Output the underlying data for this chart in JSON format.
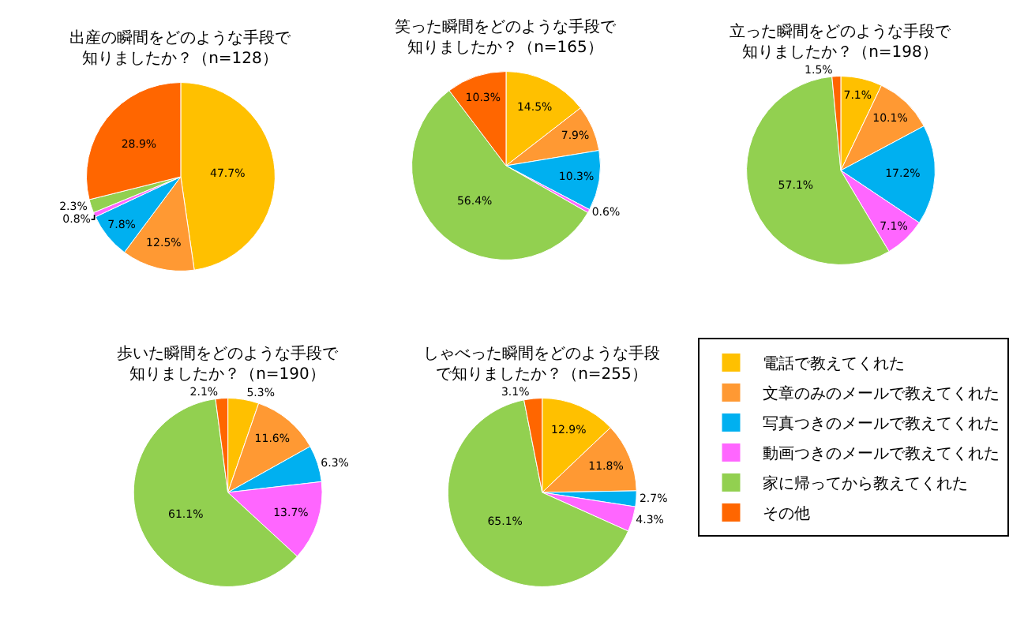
{
  "chart_data": [
    {
      "type": "pie",
      "title": "出産の瞬間をどのような手段で知りましたか？（n=128）",
      "categories": [
        "電話で教えてくれた",
        "文章のみのメールで教えてくれた",
        "写真つきのメールで教えてくれた",
        "動画つきのメールで教えてくれた",
        "家に帰ってから教えてくれた",
        "その他"
      ],
      "values": [
        47.7,
        12.5,
        7.8,
        0.8,
        2.3,
        28.9
      ],
      "colors": [
        "#ffc000",
        "#ff9933",
        "#00b0f0",
        "#ff66ff",
        "#92d050",
        "#ff6600"
      ],
      "value_labels": [
        "47.7%",
        "12.5%",
        "7.8%",
        "0.8%",
        "2.3%",
        "28.9%"
      ],
      "legend": "right"
    },
    {
      "type": "pie",
      "title": "笑った瞬間をどのような手段で知りましたか？（n=165）",
      "categories": [
        null,
        null,
        null,
        null,
        null,
        null
      ],
      "values": [
        14.5,
        7.9,
        10.3,
        0.6,
        56.4,
        10.3
      ],
      "colors": [
        "#ffc000",
        "#ff9933",
        "#00b0f0",
        "#ff66ff",
        "#92d050",
        "#ff6600"
      ],
      "value_labels": [
        "14.5%",
        "7.9%",
        "10.3%",
        "0.6%",
        "56.4%",
        "10.3%"
      ]
    },
    {
      "type": "pie",
      "title": "立った瞬間をどのような手段で知りましたか？（n=198）",
      "categories": [
        null,
        null,
        null,
        null,
        null,
        null
      ],
      "values": [
        7.1,
        10.1,
        17.2,
        7.1,
        57.1,
        1.5
      ],
      "colors": [
        "#ffc000",
        "#ff9933",
        "#00b0f0",
        "#ff66ff",
        "#92d050",
        "#ff6600"
      ],
      "value_labels": [
        "7.1%",
        "10.1%",
        "17.2%",
        "7.1%",
        "57.1%",
        "1.5%"
      ]
    },
    {
      "type": "pie",
      "title": "歩いた瞬間をどのような手段で知りましたか？（n=190）",
      "categories": [
        null,
        null,
        null,
        null,
        null,
        null
      ],
      "values": [
        5.3,
        11.6,
        6.3,
        13.7,
        61.1,
        2.1
      ],
      "colors": [
        "#ffc000",
        "#ff9933",
        "#00b0f0",
        "#ff66ff",
        "#92d050",
        "#ff6600"
      ],
      "value_labels": [
        "5.3%",
        "11.6%",
        "6.3%",
        "13.7%",
        "61.1%",
        "2.1%"
      ]
    },
    {
      "type": "pie",
      "title": "しゃべった瞬間をどのような手段で知りましたか？（n=255）",
      "categories": [
        null,
        null,
        null,
        null,
        null,
        null
      ],
      "values": [
        12.9,
        11.8,
        2.7,
        4.3,
        65.1,
        3.1
      ],
      "colors": [
        "#ffc000",
        "#ff9933",
        "#00b0f0",
        "#ff66ff",
        "#92d050",
        "#ff6600"
      ],
      "value_labels": [
        "12.9%",
        "11.8%",
        "2.7%",
        "4.3%",
        "65.1%",
        "3.1%"
      ]
    }
  ]
}
